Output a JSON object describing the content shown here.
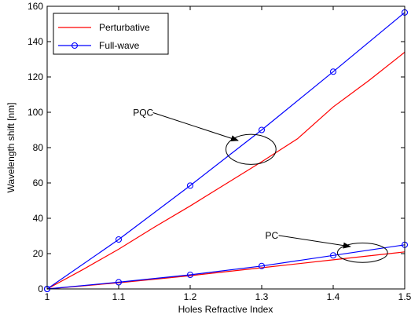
{
  "chart_data": {
    "type": "line",
    "xlabel": "Holes Refractive Index",
    "ylabel": "Wavelength shift [nm]",
    "xlim": [
      1,
      1.5
    ],
    "ylim": [
      0,
      160
    ],
    "xticks": [
      1,
      1.1,
      1.2,
      1.3,
      1.4,
      1.5
    ],
    "xtick_labels": [
      "1",
      "1.1",
      "1.2",
      "1.3",
      "1.4",
      "1.5"
    ],
    "yticks": [
      0,
      20,
      40,
      60,
      80,
      100,
      120,
      140,
      160
    ],
    "ytick_labels": [
      "0",
      "20",
      "40",
      "60",
      "80",
      "100",
      "120",
      "140",
      "160"
    ],
    "grid": false,
    "legend_position": "top-left",
    "series": [
      {
        "name": "Perturbative",
        "group": "PQC",
        "color": "#ff0000",
        "marker": "none",
        "x": [
          1,
          1.05,
          1.1,
          1.15,
          1.2,
          1.25,
          1.3,
          1.35,
          1.4,
          1.45,
          1.5
        ],
        "y": [
          0,
          11,
          22.5,
          35,
          47,
          59.5,
          72,
          85,
          103,
          118,
          134
        ]
      },
      {
        "name": "Full-wave",
        "group": "PQC",
        "color": "#0000ff",
        "marker": "circle",
        "x": [
          1,
          1.1,
          1.2,
          1.3,
          1.4,
          1.5
        ],
        "y": [
          0,
          28,
          58.5,
          90,
          123,
          156.5
        ]
      },
      {
        "name": "Perturbative",
        "group": "PC",
        "color": "#ff0000",
        "marker": "none",
        "x": [
          1,
          1.1,
          1.2,
          1.3,
          1.4,
          1.5
        ],
        "y": [
          0,
          3.5,
          7.5,
          12,
          16.5,
          21
        ]
      },
      {
        "name": "Full-wave",
        "group": "PC",
        "color": "#0000ff",
        "marker": "circle",
        "x": [
          1,
          1.1,
          1.2,
          1.3,
          1.4,
          1.5
        ],
        "y": [
          0,
          3.8,
          8,
          13,
          19,
          25
        ]
      }
    ],
    "legend": [
      {
        "label": "Perturbative",
        "color": "#ff0000",
        "marker": "none"
      },
      {
        "label": "Full-wave",
        "color": "#0000ff",
        "marker": "circle"
      }
    ],
    "annotations": [
      {
        "text": "PQC",
        "ellipse_center": [
          1.285,
          79
        ],
        "ellipse_radius": [
          0.035,
          8.5
        ],
        "label_at": [
          1.12,
          98
        ],
        "arrow_to": [
          1.267,
          84
        ]
      },
      {
        "text": "PC",
        "ellipse_center": [
          1.441,
          20.5
        ],
        "ellipse_radius": [
          0.035,
          5.5
        ],
        "label_at": [
          1.305,
          28.5
        ],
        "arrow_to": [
          1.424,
          24
        ]
      }
    ]
  }
}
